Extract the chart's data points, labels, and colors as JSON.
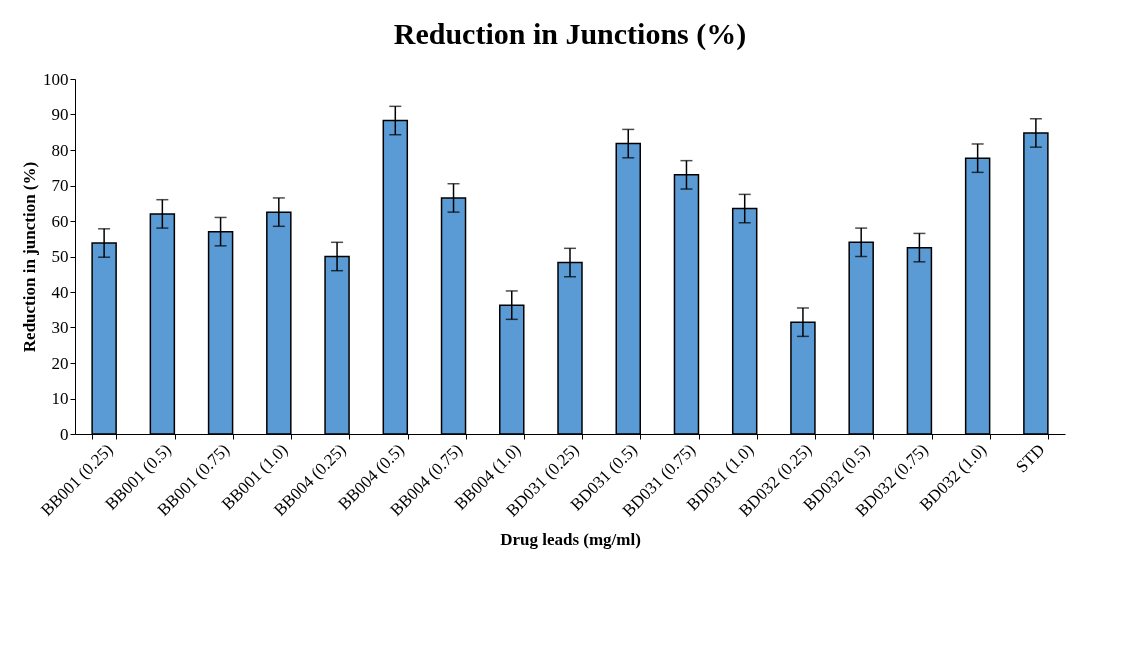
{
  "chart_data": {
    "type": "bar",
    "title": "Reduction in Junctions (%)",
    "xlabel": "Drug leads (mg/ml)",
    "ylabel": "Reduction in junction (%)",
    "categories": [
      "BB001 (0.25)",
      "BB001 (0.5)",
      "BB001 (0.75)",
      "BB001 (1.0)",
      "BB004 (0.25)",
      "BB004 (0.5)",
      "BB004 (0.75)",
      "BB004 (1.0)",
      "BD031 (0.25)",
      "BD031 (0.5)",
      "BD031 (0.75)",
      "BD031 (1.0)",
      "BD032 (0.25)",
      "BD032 (0.5)",
      "BD032 (0.75)",
      "BD032 (1.0)",
      "STD"
    ],
    "values": [
      53.8,
      62,
      57,
      62.5,
      50,
      88.3,
      66.5,
      36.3,
      48.3,
      81.8,
      73,
      63.5,
      31.5,
      54,
      52.5,
      77.7,
      84.8
    ],
    "errors": [
      4,
      4,
      4,
      4,
      4,
      4,
      4,
      4,
      4,
      4,
      4,
      4,
      4,
      4,
      4,
      4,
      4
    ],
    "color": "#5b9bd5",
    "ylim": [
      0,
      100
    ],
    "yticks": [
      0,
      10,
      20,
      30,
      40,
      50,
      60,
      70,
      80,
      90,
      100
    ],
    "grid": false
  }
}
